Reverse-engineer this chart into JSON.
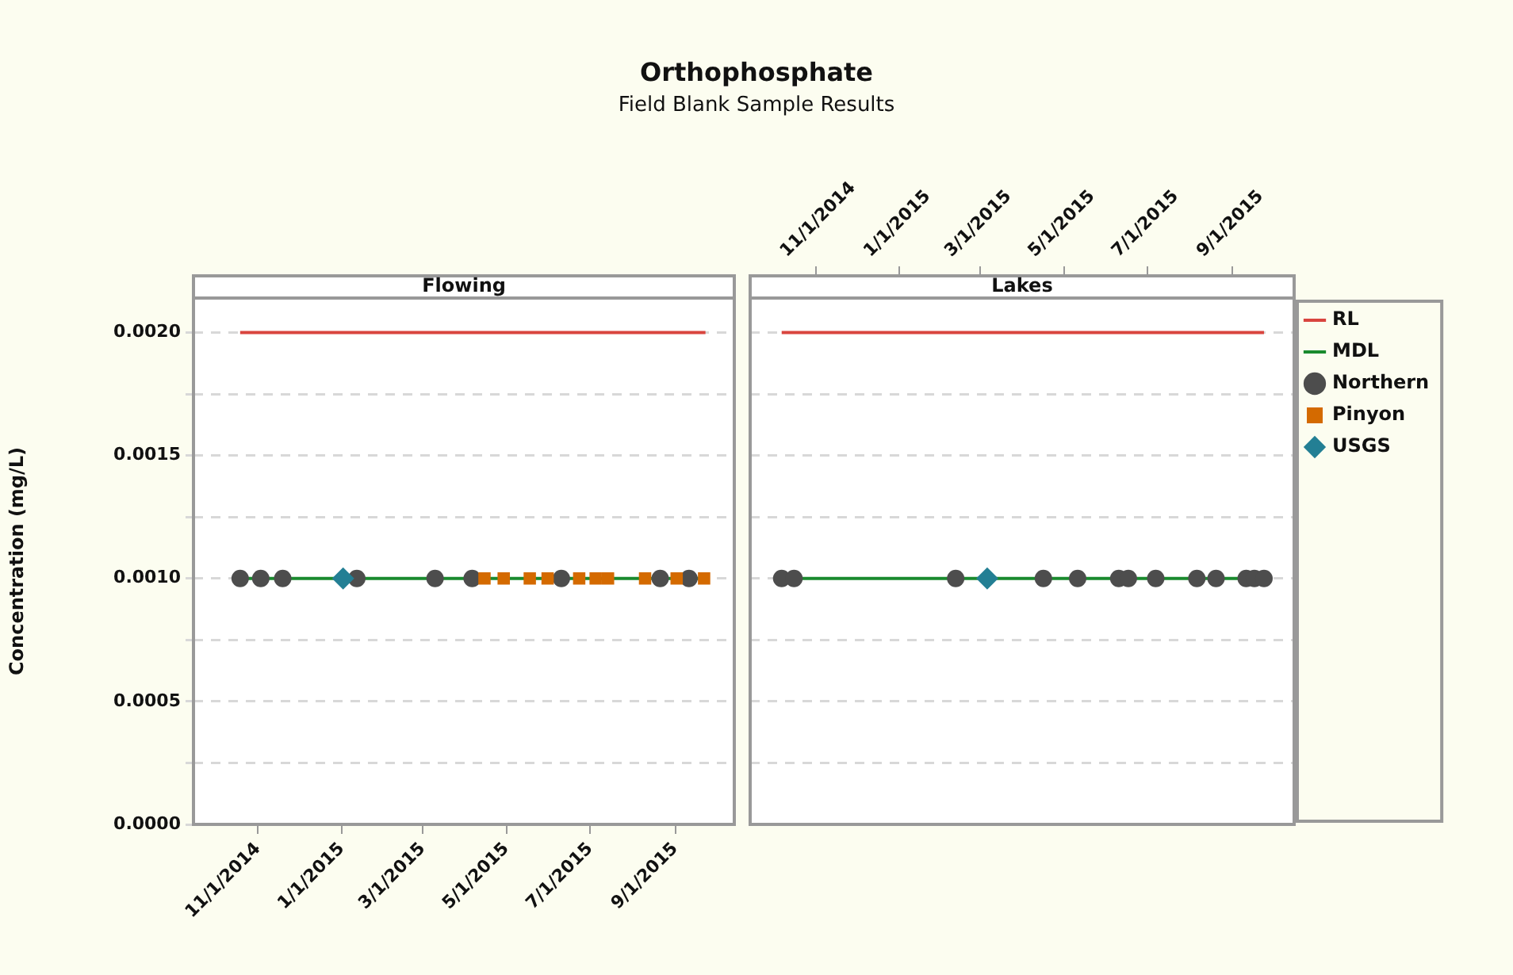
{
  "chart_data": [
    {
      "type": "other",
      "title": "Orthophosphate",
      "subtitle": "Field Blank Sample Results"
    },
    {
      "type": "scatter",
      "title": "Flowing",
      "ylabel": "Concentration (mg/L)",
      "grid": "y",
      "legend": false,
      "xlim": [
        "2014-09-15",
        "2015-10-14"
      ],
      "xticks": [
        {
          "value": "2014-11-01",
          "label": "11/1/2014"
        },
        {
          "value": "2015-01-01",
          "label": "1/1/2015"
        },
        {
          "value": "2015-03-01",
          "label": "3/1/2015"
        },
        {
          "value": "2015-05-01",
          "label": "5/1/2015"
        },
        {
          "value": "2015-07-01",
          "label": "7/1/2015"
        },
        {
          "value": "2015-09-01",
          "label": "9/1/2015"
        }
      ],
      "ylim": [
        0,
        0.00214
      ],
      "yticks": [
        {
          "value": 0,
          "label": "0.0000"
        },
        {
          "value": 0.00025,
          "label": null
        },
        {
          "value": 0.0005,
          "label": "0.0005"
        },
        {
          "value": 0.00075,
          "label": null
        },
        {
          "value": 0.001,
          "label": "0.0010"
        },
        {
          "value": 0.00125,
          "label": null
        },
        {
          "value": 0.0015,
          "label": "0.0015"
        },
        {
          "value": 0.00175,
          "label": null
        },
        {
          "value": 0.002,
          "label": "0.0020"
        }
      ],
      "series": [
        {
          "type": "line",
          "color": "#d9453f",
          "x": [
            "2014-10-19",
            "2015-09-23"
          ],
          "values": [
            0.002,
            0.002
          ]
        },
        {
          "type": "line",
          "color": "#1a8a2e",
          "x": [
            "2014-10-19",
            "2015-09-23"
          ],
          "values": [
            0.001,
            0.001
          ]
        },
        {
          "type": "scatter",
          "marker": "circle",
          "color": "#4d4d4d",
          "x": [
            "2014-10-19",
            "2014-11-03",
            "2014-11-19",
            "2015-01-12",
            "2015-03-10",
            "2015-04-06",
            "2015-06-10",
            "2015-08-21",
            "2015-09-11"
          ],
          "values": [
            0.001,
            0.001,
            0.001,
            0.001,
            0.001,
            0.001,
            0.001,
            0.001,
            0.001
          ]
        },
        {
          "type": "scatter",
          "marker": "square",
          "color": "#d46a00",
          "x": [
            "2015-04-15",
            "2015-04-29",
            "2015-05-18",
            "2015-05-31",
            "2015-06-23",
            "2015-07-05",
            "2015-07-14",
            "2015-08-10",
            "2015-09-02",
            "2015-09-22"
          ],
          "values": [
            0.001,
            0.001,
            0.001,
            0.001,
            0.001,
            0.001,
            0.001,
            0.001,
            0.001,
            0.001
          ]
        },
        {
          "type": "scatter",
          "marker": "diamond",
          "color": "#237f94",
          "x": [
            "2015-01-02"
          ],
          "values": [
            0.001
          ]
        }
      ]
    },
    {
      "type": "scatter",
      "title": "Lakes",
      "grid": "y",
      "legend": "right",
      "tick_labels": "x",
      "xlim": [
        "2014-09-14",
        "2015-10-16"
      ],
      "xticks": [
        {
          "value": "2014-11-01",
          "label": "11/1/2014"
        },
        {
          "value": "2015-01-01",
          "label": "1/1/2015"
        },
        {
          "value": "2015-03-01",
          "label": "3/1/2015"
        },
        {
          "value": "2015-05-01",
          "label": "5/1/2015"
        },
        {
          "value": "2015-07-01",
          "label": "7/1/2015"
        },
        {
          "value": "2015-09-01",
          "label": "9/1/2015"
        }
      ],
      "ylim": [
        0,
        0.00214
      ],
      "yticks": [
        0,
        0.00025,
        0.0005,
        0.00075,
        0.001,
        0.00125,
        0.0015,
        0.00175,
        0.002
      ],
      "series": [
        {
          "type": "line",
          "name": "RL",
          "color": "#d9453f",
          "x": [
            "2014-10-07",
            "2015-09-24"
          ],
          "values": [
            0.002,
            0.002
          ]
        },
        {
          "type": "line",
          "name": "MDL",
          "color": "#1a8a2e",
          "x": [
            "2014-10-07",
            "2015-09-24"
          ],
          "values": [
            0.001,
            0.001
          ]
        },
        {
          "type": "scatter",
          "name": "Northern",
          "marker": "circle",
          "color": "#4d4d4d",
          "x": [
            "2014-10-07",
            "2014-10-16",
            "2015-02-11",
            "2015-04-16",
            "2015-05-11",
            "2015-06-10",
            "2015-06-17",
            "2015-07-07",
            "2015-08-06",
            "2015-08-20",
            "2015-09-11",
            "2015-09-17",
            "2015-09-24"
          ],
          "values": [
            0.001,
            0.001,
            0.001,
            0.001,
            0.001,
            0.001,
            0.001,
            0.001,
            0.001,
            0.001,
            0.001,
            0.001,
            0.001
          ]
        },
        {
          "type": "scatter",
          "name": "Pinyon",
          "marker": "square",
          "color": "#d46a00"
        },
        {
          "type": "scatter",
          "name": "USGS",
          "marker": "diamond",
          "color": "#237f94",
          "x": [
            "2015-03-06"
          ],
          "values": [
            0.001
          ]
        }
      ]
    }
  ]
}
